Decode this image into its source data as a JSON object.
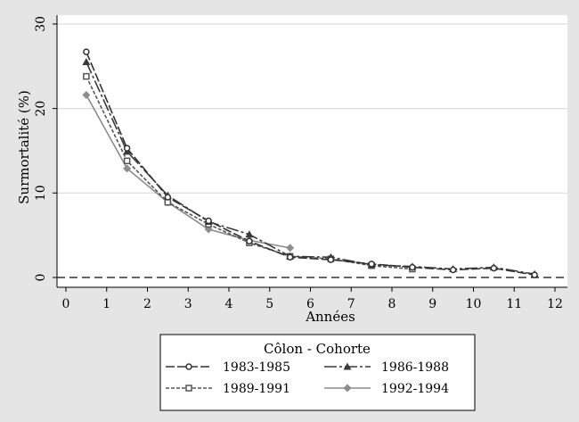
{
  "chart_data": {
    "type": "line",
    "title": "",
    "xlabel": "Années",
    "ylabel": "Surmortalité (%)",
    "xlim": [
      0,
      12
    ],
    "ylim": [
      0,
      30
    ],
    "xticks": [
      "0",
      "1",
      "2",
      "3",
      "4",
      "5",
      "6",
      "7",
      "8",
      "9",
      "10",
      "11",
      "12"
    ],
    "yticks": [
      "0",
      "10",
      "20",
      "30"
    ],
    "grid": true,
    "legend_title": "Côlon - Cohorte",
    "legend_placement": "bottom",
    "reference_line": 0,
    "series": [
      {
        "name": "1983-1985",
        "marker": "circle",
        "color": "#333333",
        "dash": "10 3",
        "x": [
          0.5,
          1.5,
          2.5,
          3.5,
          4.5,
          5.5,
          6.5,
          7.5,
          8.5,
          9.5,
          10.5,
          11.5
        ],
        "values": [
          26.7,
          15.3,
          9.5,
          6.7,
          4.3,
          2.4,
          2.1,
          1.6,
          1.2,
          0.9,
          1.1,
          0.3
        ]
      },
      {
        "name": "1986-1988",
        "marker": "triangle",
        "color": "#3a3a3a",
        "dash": "14 3 3 3",
        "x": [
          0.5,
          1.5,
          2.5,
          3.5,
          4.5,
          5.5,
          6.5,
          7.5,
          8.5,
          9.5,
          10.5,
          11.5
        ],
        "values": [
          25.5,
          14.9,
          9.7,
          6.6,
          5.1,
          2.5,
          2.4,
          1.5,
          1.3,
          1.0,
          1.2,
          0.4
        ]
      },
      {
        "name": "1989-1991",
        "marker": "square",
        "color": "#555555",
        "dash": "4 2",
        "x": [
          0.5,
          1.5,
          2.5,
          3.5,
          4.5,
          5.5,
          6.5,
          7.5,
          8.5
        ],
        "values": [
          23.8,
          13.8,
          8.9,
          6.3,
          4.1,
          2.5,
          2.2,
          1.4,
          1.0
        ]
      },
      {
        "name": "1992-1994",
        "marker": "diamond",
        "color": "#8c8c8c",
        "dash": "",
        "x": [
          0.5,
          1.5,
          2.5,
          3.5,
          4.5,
          5.5
        ],
        "values": [
          21.6,
          12.9,
          8.9,
          5.7,
          4.4,
          3.5
        ]
      }
    ]
  }
}
